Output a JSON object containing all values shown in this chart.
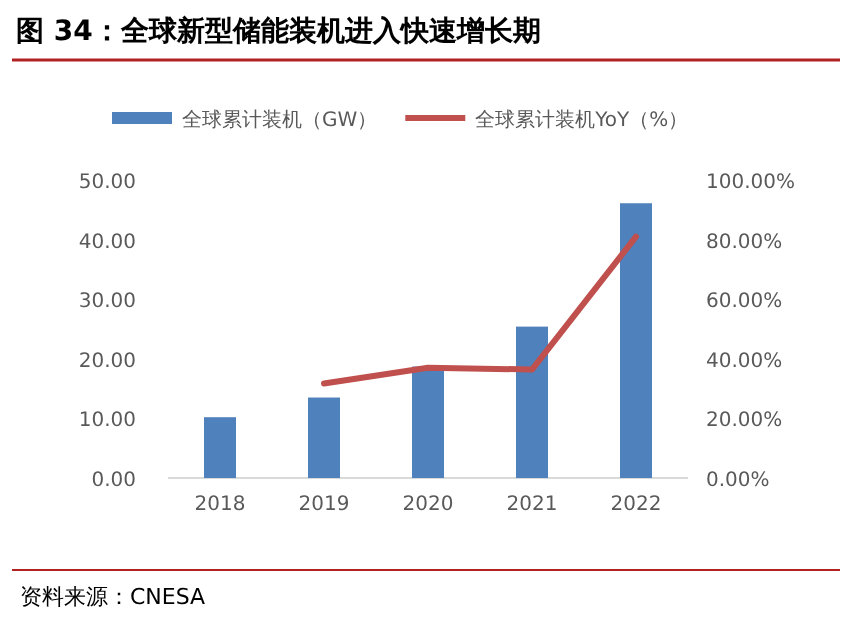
{
  "chart_data": {
    "type": "bar",
    "title": "图 34：全球新型储能装机进入快速增长期",
    "categories": [
      "2018",
      "2019",
      "2020",
      "2021",
      "2022"
    ],
    "series": [
      {
        "name": "全球累计装机（GW）",
        "color": "#4f81bd",
        "values": [
          10.2,
          13.5,
          18.7,
          25.4,
          46.1
        ]
      },
      {
        "name": "全球累计装机YoY（%）",
        "type": "line",
        "axis": "y2",
        "color": "#c0504d",
        "values": [
          null,
          31.7,
          37.0,
          36.4,
          81.0
        ]
      }
    ],
    "ylim": [
      0,
      50
    ],
    "yticks": [
      {
        "value": 0,
        "label": "0.00"
      },
      {
        "value": 10,
        "label": "10.00"
      },
      {
        "value": 20,
        "label": "20.00"
      },
      {
        "value": 30,
        "label": "30.00"
      },
      {
        "value": 40,
        "label": "40.00"
      },
      {
        "value": 50,
        "label": "50.00"
      }
    ],
    "y2lim": [
      0,
      100
    ],
    "y2ticks": [
      {
        "value": 0,
        "label": "0.00%"
      },
      {
        "value": 20,
        "label": "20.00%"
      },
      {
        "value": 40,
        "label": "40.00%"
      },
      {
        "value": 60,
        "label": "60.00%"
      },
      {
        "value": 80,
        "label": "80.00%"
      },
      {
        "value": 100,
        "label": "100.00%"
      }
    ],
    "legend": "top",
    "annotations": [
      "资料来源：CNESA"
    ]
  }
}
